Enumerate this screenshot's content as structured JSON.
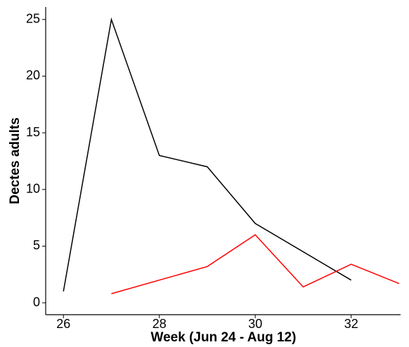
{
  "chart_data": {
    "type": "line",
    "xlabel": "Week (Jun 24 - Aug 12)",
    "ylabel": "Dectes adults",
    "series": [
      {
        "color": "#000000",
        "x": [
          26,
          27,
          28,
          29,
          30,
          32
        ],
        "values": [
          1,
          25,
          13,
          12,
          7,
          2
        ]
      },
      {
        "color": "#ff0000",
        "x": [
          27,
          29,
          30,
          31,
          32,
          33
        ],
        "values": [
          0.8,
          3.2,
          6,
          1.4,
          3.4,
          1.7
        ]
      }
    ],
    "xlim": [
      25.63,
      33.03
    ],
    "xticks": [
      26,
      28,
      30,
      32
    ],
    "ylim": [
      -1.05,
      26.1
    ],
    "yticks": [
      0,
      5,
      10,
      15,
      20,
      25
    ],
    "grid": false
  }
}
